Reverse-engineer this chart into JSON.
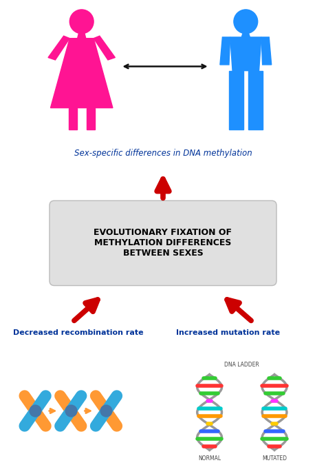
{
  "bg_color": "#ffffff",
  "female_color": "#FF1493",
  "male_color": "#1E90FF",
  "arrow_color": "#CC0000",
  "double_arrow_color": "#111111",
  "box_bg": "#E0E0E0",
  "box_edge": "#bbbbbb",
  "box_text_color": "#000000",
  "label_color": "#003399",
  "box_text": "EVOLUTIONARY FIXATION OF\nMETHYLATION DIFFERENCES\nBETWEEN SEXES",
  "label_text": "Sex-specific differences in DNA methylation",
  "left_label": "Decreased recombination rate",
  "right_label": "Increased mutation rate",
  "chr_color1": "#FF9933",
  "chr_color2": "#33AADD",
  "chr_center": "#5588BB",
  "dna_backbone": "#999999",
  "dna_colors": [
    "#FF3333",
    "#33CC33",
    "#3366FF",
    "#FFCC00",
    "#FF9900",
    "#00CCCC",
    "#FF33FF",
    "#33CC33"
  ],
  "figsize": [
    4.74,
    6.75
  ],
  "dpi": 100
}
